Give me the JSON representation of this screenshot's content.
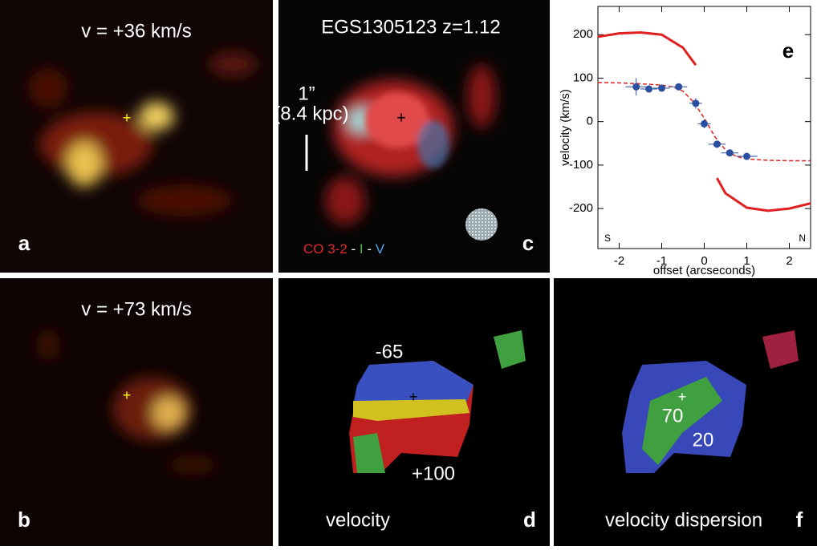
{
  "panels": {
    "a": {
      "label": "v = +36 km/s",
      "letter": "a"
    },
    "b": {
      "label": "v = +73 km/s",
      "letter": "b"
    },
    "c": {
      "title": "EGS1305123 z=1.12",
      "scale": "1”",
      "scale_kpc": "(8.4 kpc)",
      "legend": [
        {
          "text": "CO 3-2",
          "color": "#e02828"
        },
        {
          "text": " - ",
          "color": "#ffffff"
        },
        {
          "text": "I",
          "color": "#40c040"
        },
        {
          "text": " - ",
          "color": "#ffffff"
        },
        {
          "text": "V",
          "color": "#4aa8e8"
        }
      ],
      "letter": "c"
    },
    "d": {
      "top_label": "-65",
      "bottom_label": "+100",
      "caption": "velocity",
      "letter": "d"
    },
    "f": {
      "label_high": "70",
      "label_low": "20",
      "caption": "velocity dispersion",
      "letter": "f"
    }
  },
  "chart_data": {
    "type": "line",
    "panel_letter": "e",
    "corner_left": "S",
    "corner_right": "N",
    "x_label": "offset (arcseconds)",
    "y_label": "velocity (km/s)",
    "xlim": [
      -2.5,
      2.5
    ],
    "xticks": [
      -2,
      -1,
      0,
      1,
      2
    ],
    "ylim": [
      -292,
      265
    ],
    "yticks": [
      -200,
      -100,
      0,
      100,
      200
    ],
    "series": [
      {
        "type": "line",
        "dash": false,
        "color": "#e02020",
        "x": [
          -2.5,
          -2,
          -1.5,
          -1,
          -0.5,
          -0.2,
          null,
          0.3,
          0.5,
          1,
          1.5,
          2,
          2.5
        ],
        "values": [
          195,
          203,
          205,
          200,
          170,
          130,
          null,
          -130,
          -165,
          -198,
          -205,
          -200,
          -188
        ]
      },
      {
        "type": "line",
        "dash": true,
        "color": "#e02020",
        "x": [
          -2.5,
          -2,
          -1.5,
          -1,
          -0.75,
          -0.5,
          -0.25,
          0,
          0.25,
          0.5,
          0.75,
          1,
          1.5,
          2,
          2.5
        ],
        "values": [
          90,
          89,
          87,
          84,
          80,
          70,
          45,
          8,
          -35,
          -65,
          -80,
          -86,
          -89,
          -90,
          -90
        ]
      },
      {
        "type": "errorbar",
        "color": "#2a4ea0",
        "x": [
          -1.6,
          -1.3,
          -1.0,
          -0.6,
          -0.2,
          0.0,
          0.3,
          0.6,
          1.0
        ],
        "values": [
          80,
          75,
          77,
          80,
          42,
          -5,
          -52,
          -72,
          -80
        ],
        "xerr": [
          0.25,
          0.2,
          0.2,
          0.2,
          0.15,
          0.15,
          0.2,
          0.2,
          0.25
        ],
        "yerr": [
          20,
          8,
          8,
          8,
          12,
          10,
          8,
          8,
          8
        ]
      }
    ]
  }
}
